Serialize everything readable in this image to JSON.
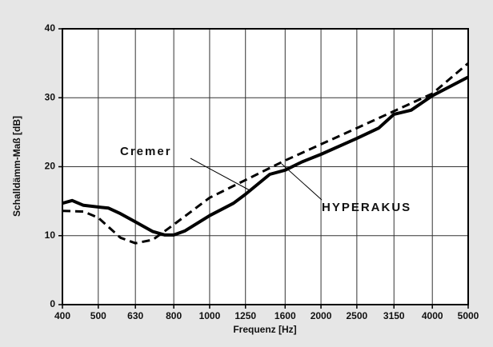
{
  "chart_data": {
    "type": "line",
    "xlabel": "Frequenz  [Hz]",
    "ylabel": "Schalldämm-Maß [dB]",
    "xscale": "log",
    "xlim": [
      400,
      5000
    ],
    "xticks": [
      400,
      500,
      630,
      800,
      1000,
      1250,
      1600,
      2000,
      2500,
      3150,
      4000,
      5000
    ],
    "ylim": [
      0,
      40
    ],
    "yticks": [
      0,
      10,
      20,
      30,
      40
    ],
    "grid": true,
    "series": [
      {
        "name": "HYPERAKUS",
        "color": "#000000",
        "dash": false,
        "x": [
          400,
          425,
          456,
          533,
          574,
          630,
          702,
          757,
          800,
          858,
          1000,
          1160,
          1250,
          1454,
          1600,
          1777,
          2000,
          2500,
          2865,
          3150,
          3505,
          4000,
          5000
        ],
        "values": [
          14.7,
          15.1,
          14.4,
          14.0,
          13.2,
          12.0,
          10.6,
          10.1,
          10.1,
          10.7,
          12.9,
          14.7,
          16.0,
          18.9,
          19.5,
          20.7,
          21.8,
          24.1,
          25.6,
          27.6,
          28.2,
          30.3,
          33.0
        ]
      },
      {
        "name": "Cremer",
        "color": "#000000",
        "dash": true,
        "x": [
          400,
          456,
          500,
          574,
          630,
          702,
          800,
          1000,
          1600,
          2500,
          4000,
          5000
        ],
        "values": [
          13.6,
          13.5,
          12.6,
          9.7,
          8.9,
          9.4,
          11.6,
          15.5,
          20.9,
          25.6,
          30.6,
          35.0
        ]
      }
    ]
  }
}
